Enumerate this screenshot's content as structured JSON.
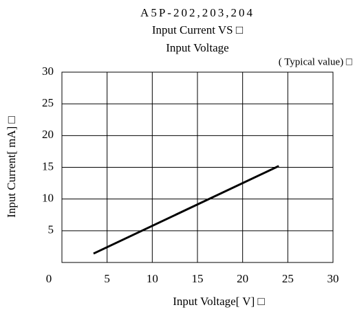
{
  "chart_data": {
    "type": "line",
    "title": "A5P-202,203,204",
    "subtitle": [
      "Input Current VS □",
      "Input Voltage",
      "( Typical value) □"
    ],
    "x_label": "Input Voltage[ V] □",
    "y_label": "Input Current[ mA] □",
    "x": [
      3.5,
      24
    ],
    "series": [
      {
        "name": "Input Current",
        "color": "#000000",
        "values": [
          1.4,
          15.2
        ]
      }
    ],
    "xlim": [
      0,
      30
    ],
    "xticks": [
      0,
      5,
      10,
      15,
      20,
      25,
      30
    ],
    "ylim": [
      0,
      30
    ],
    "yticks": [
      5,
      10,
      15,
      20,
      25,
      30
    ],
    "grid": true
  }
}
